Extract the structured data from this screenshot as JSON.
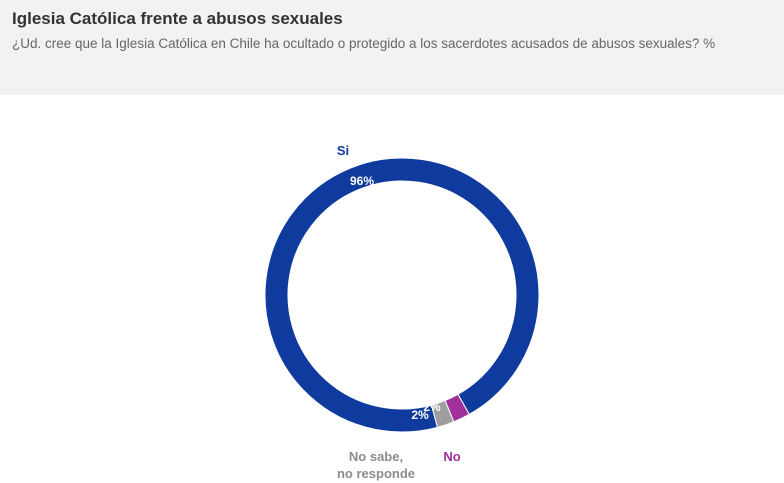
{
  "header": {
    "title": "Iglesia Católica frente a abusos sexuales",
    "subtitle": "¿Ud. cree que la Iglesia Católica en Chile ha ocultado o protegido a los sacerdotes acusados de abusos sexuales? %"
  },
  "chart_data": {
    "type": "pie",
    "variant": "donut",
    "title": "Iglesia Católica frente a abusos sexuales",
    "subtitle": "¿Ud. cree que la Iglesia Católica en Chile ha ocultado o protegido a los sacerdotes acusados de abusos sexuales? %",
    "unit": "%",
    "slices": [
      {
        "label": "Si",
        "label_lines": [
          "Si"
        ],
        "value": 96,
        "display": "96%",
        "color": "#0f3a9e"
      },
      {
        "label": "No",
        "label_lines": [
          "No"
        ],
        "value": 2,
        "display": "2%",
        "color": "#a0309a"
      },
      {
        "label": "No sabe, no responde",
        "label_lines": [
          "No sabe,",
          "no responde"
        ],
        "value": 2,
        "display": "2%",
        "color": "#9e9e9e",
        "label_color": "#8c8c8c"
      }
    ]
  }
}
